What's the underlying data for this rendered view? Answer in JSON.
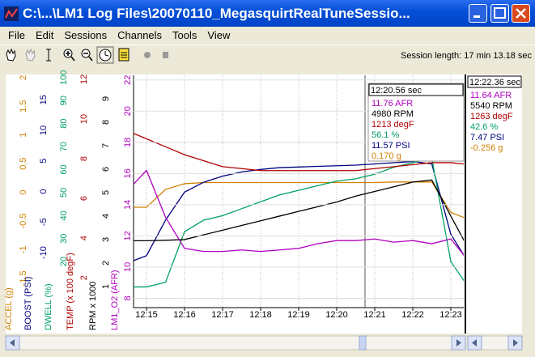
{
  "window": {
    "title": "C:\\...\\LM1 Log Files\\20070110_MegasquirtRealTuneSessio..."
  },
  "menu": [
    "File",
    "Edit",
    "Sessions",
    "Channels",
    "Tools",
    "View"
  ],
  "toolbar": {
    "session_label": "Session length:",
    "session_value": "17 min 13.18 sec"
  },
  "chart_data": {
    "type": "line",
    "categories": [
      null,
      "12:15",
      null,
      "12:16",
      null,
      "12:17",
      null,
      "12:18",
      null,
      "12:19",
      null,
      "12:20",
      null,
      "12:21",
      null,
      "12:22",
      null,
      "12:23",
      null
    ],
    "grid": true,
    "axes": [
      {
        "label": "ACCEL (g)",
        "color": "#d08000",
        "ylim": [
          -2.01,
          2.04
        ],
        "yticks": [
          2,
          1.5,
          1,
          0.5,
          0,
          -0.5,
          -1,
          -1.5
        ],
        "values": [
          -0.26,
          -0.26,
          0.05,
          0.15,
          0.17,
          0.17,
          0.17,
          0.17,
          0.17,
          0.17,
          0.17,
          0.17,
          0.17,
          0.17,
          0.18,
          0.18,
          0.18,
          -0.35,
          -0.48
        ]
      },
      {
        "label": "BOOST (PSI)",
        "color": "#000080",
        "ylim": [
          -19,
          19
        ],
        "yticks": [
          15,
          10,
          5,
          0,
          -5,
          -10
        ],
        "values": [
          -11.7,
          -10.5,
          -4.7,
          -0.1,
          1.5,
          2.5,
          3.2,
          3.6,
          3.9,
          4.0,
          4.1,
          4.2,
          4.3,
          4.5,
          4.7,
          4.9,
          4.5,
          -7,
          -12
        ]
      },
      {
        "label": "DWELL (%)",
        "color": "#00a060",
        "ylim": [
          0,
          101
        ],
        "yticks": [
          100,
          90,
          80,
          70,
          60,
          50,
          40,
          30,
          20
        ],
        "values": [
          9,
          9,
          11,
          33,
          38,
          40,
          43,
          46,
          49,
          51,
          53,
          55,
          56,
          58,
          61,
          63,
          65,
          20,
          8
        ]
      },
      {
        "label": "TEMP (x 100 degF)",
        "color": "#b00000",
        "ylim": [
          0.5,
          12.2
        ],
        "yticks": [
          12,
          10,
          8,
          6,
          4,
          2
        ],
        "values": [
          9.4,
          9.0,
          8.6,
          8.2,
          7.9,
          7.6,
          7.5,
          7.4,
          7.4,
          7.4,
          7.4,
          7.4,
          7.4,
          7.5,
          7.6,
          7.7,
          7.8,
          7.8,
          7.7
        ]
      },
      {
        "label": "RPM x 1000",
        "color": "#000000",
        "ylim": [
          0.1,
          10
        ],
        "yticks": [
          9,
          8,
          7,
          6,
          5,
          4,
          3,
          2,
          1
        ],
        "values": [
          2.95,
          2.95,
          2.97,
          3.0,
          3.2,
          3.4,
          3.6,
          3.8,
          4.0,
          4.2,
          4.4,
          4.6,
          4.85,
          5.05,
          5.25,
          5.45,
          5.54,
          4.0,
          2.5
        ]
      },
      {
        "label": "LM1_O2 (AFR)",
        "color": "#b000c0",
        "ylim": [
          7.4,
          22.3
        ],
        "yticks": [
          22,
          20,
          18,
          16,
          14,
          12,
          10,
          8
        ],
        "grid": true,
        "values": [
          14.9,
          16.2,
          13.2,
          11.2,
          11.0,
          11.0,
          11.1,
          11.0,
          11.1,
          11.2,
          11.5,
          11.7,
          11.7,
          11.8,
          11.6,
          11.7,
          11.5,
          11.8,
          10.3
        ]
      }
    ]
  },
  "cursors": [
    {
      "time": "12:20.56 sec",
      "lines": [
        {
          "text": "11.76 AFR",
          "color": "#b000c0"
        },
        {
          "text": "4980 RPM",
          "color": "#000000"
        },
        {
          "text": "1213 degF",
          "color": "#b00000"
        },
        {
          "text": "56.1 %",
          "color": "#00a060"
        },
        {
          "text": "11.57 PSI",
          "color": "#000080"
        },
        {
          "text": "0.170 g",
          "color": "#d08000"
        }
      ]
    },
    {
      "time": "12:22.36 sec",
      "lines": [
        {
          "text": "11.64 AFR",
          "color": "#b000c0"
        },
        {
          "text": "5540 RPM",
          "color": "#000000"
        },
        {
          "text": "1263 degF",
          "color": "#b00000"
        },
        {
          "text": "42.6 %",
          "color": "#00a060"
        },
        {
          "text": "7.47 PSI",
          "color": "#000080"
        },
        {
          "text": "-0.256 g",
          "color": "#d08000"
        }
      ]
    }
  ]
}
